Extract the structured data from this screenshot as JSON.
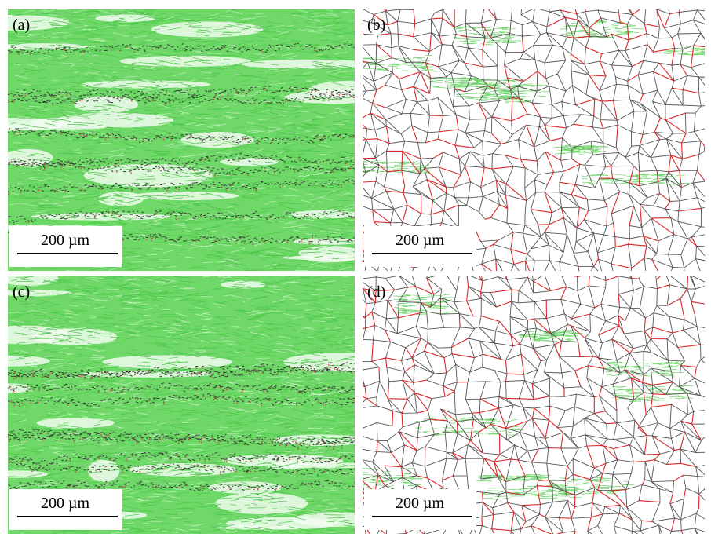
{
  "panels": [
    {
      "label": "(a)",
      "scale_bar": "200 µm"
    },
    {
      "label": "(b)",
      "scale_bar": "200 µm"
    },
    {
      "label": "(c)",
      "scale_bar": "200 µm"
    },
    {
      "label": "(d)",
      "scale_bar": "200 µm"
    }
  ]
}
